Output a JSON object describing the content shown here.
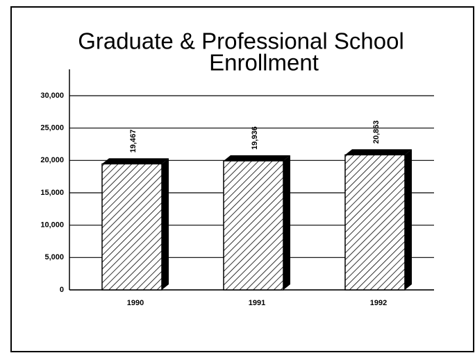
{
  "chart_data": {
    "type": "bar",
    "title": [
      "Graduate & Professional School",
      "Enrollment"
    ],
    "categories": [
      "1990",
      "1991",
      "1992"
    ],
    "values": [
      19467,
      19936,
      20863
    ],
    "value_labels": [
      "19,467",
      "19,936",
      "20,863"
    ],
    "color": "#000000",
    "ylim": [
      0,
      30000
    ],
    "yticks": [
      0,
      {
        "value": 5000,
        "label": "5,000"
      },
      {
        "value": 10000,
        "label": "10,000"
      },
      {
        "value": 15000,
        "label": "15,000"
      },
      {
        "value": 20000,
        "label": "20,000"
      },
      {
        "value": 25000,
        "label": "25,000"
      },
      {
        "value": 30000,
        "label": "30,000"
      }
    ],
    "grid": true
  }
}
